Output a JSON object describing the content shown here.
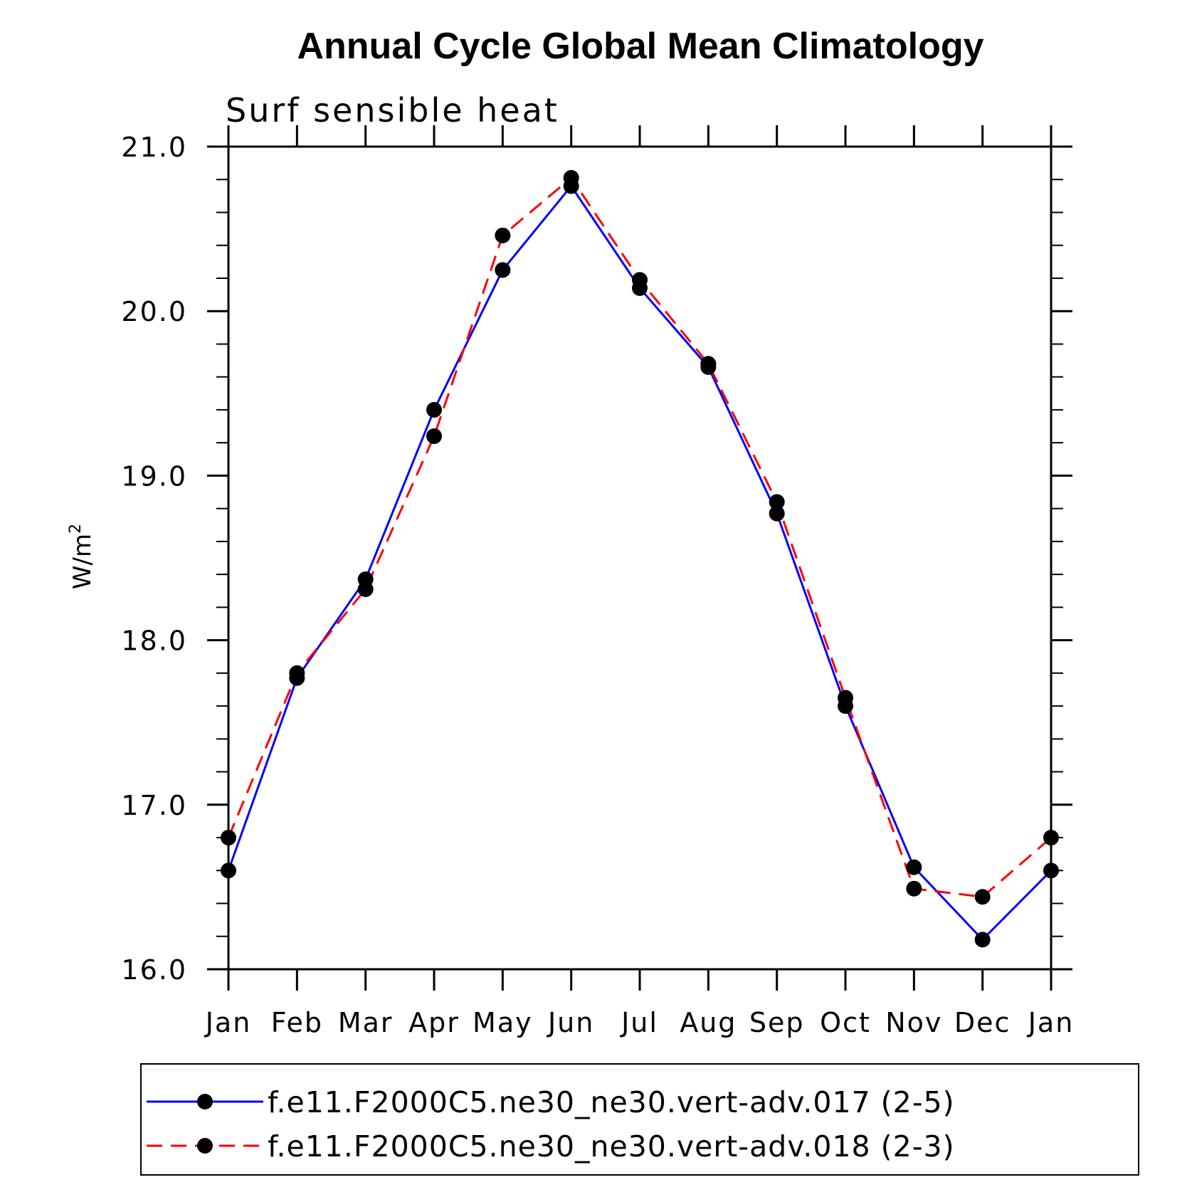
{
  "chart_data": {
    "type": "line",
    "title": "Annual Cycle Global Mean Climatology",
    "subtitle": "Surf sensible heat",
    "xlabel": "",
    "ylabel": "W/m",
    "ylabel_superscript": "2",
    "categories": [
      "Jan",
      "Feb",
      "Mar",
      "Apr",
      "May",
      "Jun",
      "Jul",
      "Aug",
      "Sep",
      "Oct",
      "Nov",
      "Dec",
      "Jan"
    ],
    "yticks": [
      "16.0",
      "17.0",
      "18.0",
      "19.0",
      "20.0",
      "21.0"
    ],
    "ylim": [
      16.0,
      21.0
    ],
    "series": [
      {
        "name": "f.e11.F2000C5.ne30_ne30.vert-adv.017 (2-5)",
        "color": "#0000ff",
        "dash": "solid",
        "values": [
          16.6,
          17.77,
          18.37,
          19.4,
          20.25,
          20.76,
          20.14,
          19.66,
          18.77,
          17.6,
          16.62,
          16.18,
          16.6
        ]
      },
      {
        "name": "f.e11.F2000C5.ne30_ne30.vert-adv.018 (2-3)",
        "color": "#ff0000",
        "dash": "dashed",
        "values": [
          16.8,
          17.8,
          18.31,
          19.24,
          20.46,
          20.81,
          20.19,
          19.68,
          18.84,
          17.65,
          16.49,
          16.44,
          16.8
        ]
      }
    ],
    "grid": false,
    "legend_position": "bottom"
  }
}
